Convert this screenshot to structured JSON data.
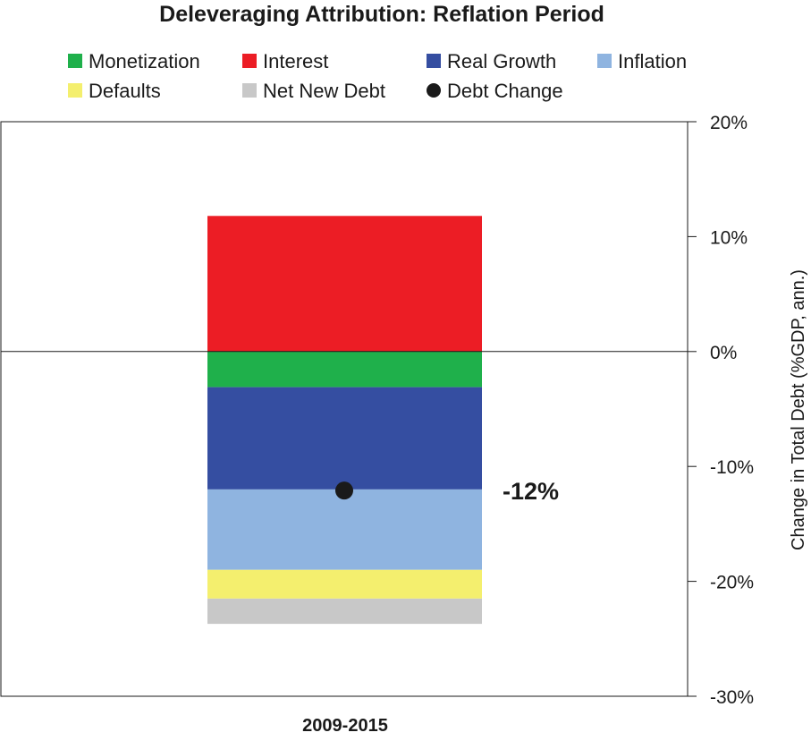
{
  "chart_data": {
    "type": "bar",
    "stacked": true,
    "title": "Deleveraging Attribution: Reflation Period",
    "ylabel": "Change in Total Debt (%GDP, ann.)",
    "xlabel": "",
    "categories": [
      "2009-2015"
    ],
    "ylim": [
      -30,
      20
    ],
    "yticks": [
      20,
      10,
      0,
      -10,
      -20,
      -30
    ],
    "ytick_labels": [
      "20%",
      "10%",
      "0%",
      "-10%",
      "-20%",
      "-30%"
    ],
    "grid": false,
    "zero_line": true,
    "legend_position": "top",
    "series": [
      {
        "name": "Monetization",
        "color": "#1fb04b",
        "values": [
          -3.1
        ]
      },
      {
        "name": "Interest",
        "color": "#ec1d25",
        "values": [
          11.8
        ]
      },
      {
        "name": "Real Growth",
        "color": "#354ea1",
        "values": [
          -8.9
        ]
      },
      {
        "name": "Inflation",
        "color": "#8fb4e0",
        "values": [
          -7.0
        ]
      },
      {
        "name": "Defaults",
        "color": "#f4ef6e",
        "values": [
          -2.5
        ]
      },
      {
        "name": "Net New Debt",
        "color": "#c8c8c8",
        "values": [
          -2.2
        ]
      }
    ],
    "stack_order_above_zero": [
      "Interest"
    ],
    "stack_order_below_zero": [
      "Monetization",
      "Real Growth",
      "Inflation",
      "Defaults",
      "Net New Debt"
    ],
    "marker": {
      "name": "Debt Change",
      "color": "#1a1a1a",
      "values": [
        -12.1
      ],
      "label": "-12%"
    },
    "legend_layout": [
      [
        "Monetization",
        "Interest",
        "Real Growth",
        "Inflation"
      ],
      [
        "Defaults",
        "Net New Debt",
        "Debt Change"
      ]
    ]
  }
}
